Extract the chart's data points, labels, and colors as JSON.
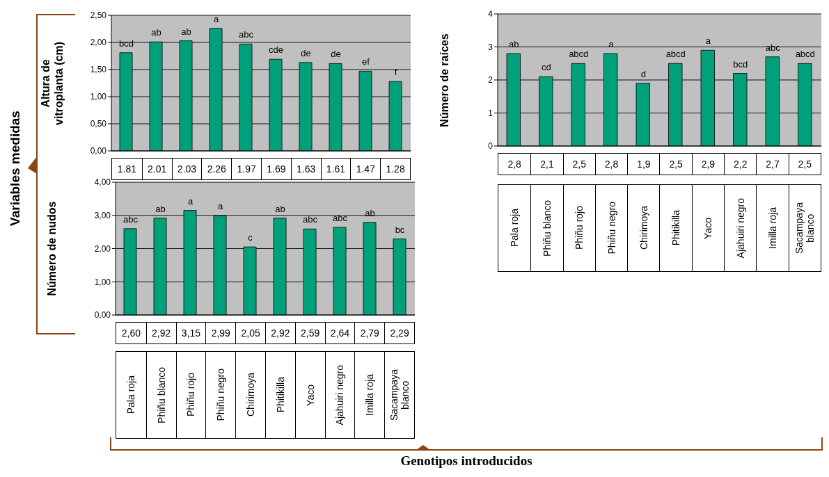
{
  "chart_data": [
    {
      "type": "bar",
      "ylabel": "Altura de vitroplanta (cm)",
      "categories": [
        "Pala  roja",
        "Phiñu blanco",
        "Phiñu rojo",
        "Phiñu negro",
        "Chirimoya",
        "Phitikilla",
        "Yaco",
        "Ajahuiri negro",
        "Imilla roja",
        "Sacampaya blanco"
      ],
      "values": [
        1.81,
        2.01,
        2.03,
        2.26,
        1.97,
        1.69,
        1.63,
        1.61,
        1.47,
        1.28
      ],
      "color": "#00a07a",
      "value_labels": [
        "1.81",
        "2.01",
        "2.03",
        "2.26",
        "1.97",
        "1.69",
        "1.63",
        "1.61",
        "1.47",
        "1.28"
      ],
      "ylim": [
        0,
        2.5
      ],
      "yticks": [
        {
          "value": 0,
          "label": "0,00"
        },
        {
          "value": 0.5,
          "label": "0,50"
        },
        {
          "value": 1,
          "label": "1,00"
        },
        {
          "value": 1.5,
          "label": "1,50"
        },
        {
          "value": 2,
          "label": "2,00"
        },
        {
          "value": 2.5,
          "label": "2,50"
        }
      ],
      "grid": "y",
      "tick_labels": "y",
      "legend": false,
      "annotations": [
        "Variables medidas",
        {
          "text": "bcd",
          "x": "Pala  roja",
          "y": 1.81
        },
        {
          "text": "ab",
          "x": "Phiñu blanco",
          "y": 2.01
        },
        {
          "text": "ab",
          "x": "Phiñu rojo",
          "y": 2.03
        },
        {
          "text": "a",
          "x": "Phiñu negro",
          "y": 2.26
        },
        {
          "text": "abc",
          "x": "Chirimoya",
          "y": 1.97
        },
        {
          "text": "cde",
          "x": "Phitikilla",
          "y": 1.69
        },
        {
          "text": "de",
          "x": "Yaco",
          "y": 1.63
        },
        {
          "text": "de",
          "x": "Ajahuiri negro",
          "y": 1.61
        },
        {
          "text": "ef",
          "x": "Imilla roja",
          "y": 1.47
        },
        {
          "text": "f",
          "x": "Sacampaya blanco",
          "y": 1.28
        }
      ]
    },
    {
      "type": "bar",
      "ylabel": "Número de raíces",
      "categories": [
        "Pala  roja",
        "Phiñu blanco",
        "Phiñu rojo",
        "Phiñu negro",
        "Chirimoya",
        "Phitikilla",
        "Yaco",
        "Ajahuiri negro",
        "Imilla roja",
        "Sacampaya blanco"
      ],
      "values": [
        2.8,
        2.1,
        2.5,
        2.8,
        1.9,
        2.5,
        2.9,
        2.2,
        2.7,
        2.5
      ],
      "color": "#00a07a",
      "value_labels": [
        "2,8",
        "2,1",
        "2,5",
        "2,8",
        "1,9",
        "2,5",
        "2,9",
        "2,2",
        "2,7",
        "2,5"
      ],
      "ylim": [
        0,
        4
      ],
      "yticks": [
        0,
        1,
        2,
        3,
        4
      ],
      "grid": "y",
      "legend": false,
      "annotations": [
        {
          "text": "ab",
          "x": "Pala  roja",
          "y": 2.8
        },
        {
          "text": "cd",
          "x": "Phiñu blanco",
          "y": 2.1
        },
        {
          "text": "abcd",
          "x": "Phiñu rojo",
          "y": 2.5
        },
        {
          "text": "a",
          "x": "Phiñu negro",
          "y": 2.8
        },
        {
          "text": "d",
          "x": "Chirimoya",
          "y": 1.9
        },
        {
          "text": "abcd",
          "x": "Phitikilla",
          "y": 2.5
        },
        {
          "text": "a",
          "x": "Yaco",
          "y": 2.9
        },
        {
          "text": "bcd",
          "x": "Ajahuiri negro",
          "y": 2.2
        },
        {
          "text": "abc",
          "x": "Imilla roja",
          "y": 2.7
        },
        {
          "text": "abcd",
          "x": "Sacampaya blanco",
          "y": 2.5
        }
      ]
    },
    {
      "type": "bar",
      "ylabel": "Número de nudos",
      "xlabel": "Genotipos introducidos",
      "categories": [
        "Pala  roja",
        "Phiñu blanco",
        "Phiñu rojo",
        "Phiñu negro",
        "Chirimoya",
        "Phitikilla",
        "Yaco",
        "Ajahuiri negro",
        "Imilla roja",
        "Sacampaya blanco"
      ],
      "values": [
        2.6,
        2.92,
        3.15,
        2.99,
        2.05,
        2.92,
        2.59,
        2.64,
        2.79,
        2.29
      ],
      "color": "#00a07a",
      "value_labels": [
        "2,60",
        "2,92",
        "3,15",
        "2,99",
        "2,05",
        "2,92",
        "2,59",
        "2,64",
        "2,79",
        "2,29"
      ],
      "ylim": [
        0,
        4
      ],
      "yticks": [
        {
          "value": 0,
          "label": "0,00"
        },
        {
          "value": 1,
          "label": "1,00"
        },
        {
          "value": 2,
          "label": "2,00"
        },
        {
          "value": 3,
          "label": "3,00"
        },
        {
          "value": 4,
          "label": "4,00"
        }
      ],
      "grid": "y",
      "legend": false,
      "annotations": [
        {
          "text": "abc",
          "x": "Pala  roja",
          "y": 2.6
        },
        {
          "text": "ab",
          "x": "Phiñu blanco",
          "y": 2.92
        },
        {
          "text": "a",
          "x": "Phiñu rojo",
          "y": 3.15
        },
        {
          "text": "a",
          "x": "Phiñu negro",
          "y": 2.99
        },
        {
          "text": "c",
          "x": "Chirimoya",
          "y": 2.05
        },
        {
          "text": "ab",
          "x": "Phitikilla",
          "y": 2.92
        },
        {
          "text": "abc",
          "x": "Yaco",
          "y": 2.59
        },
        {
          "text": "abc",
          "x": "Ajahuiri negro",
          "y": 2.64
        },
        {
          "text": "ab",
          "x": "Imilla roja",
          "y": 2.79
        },
        {
          "text": "bc",
          "x": "Sacampaya blanco",
          "y": 2.29
        }
      ]
    }
  ]
}
